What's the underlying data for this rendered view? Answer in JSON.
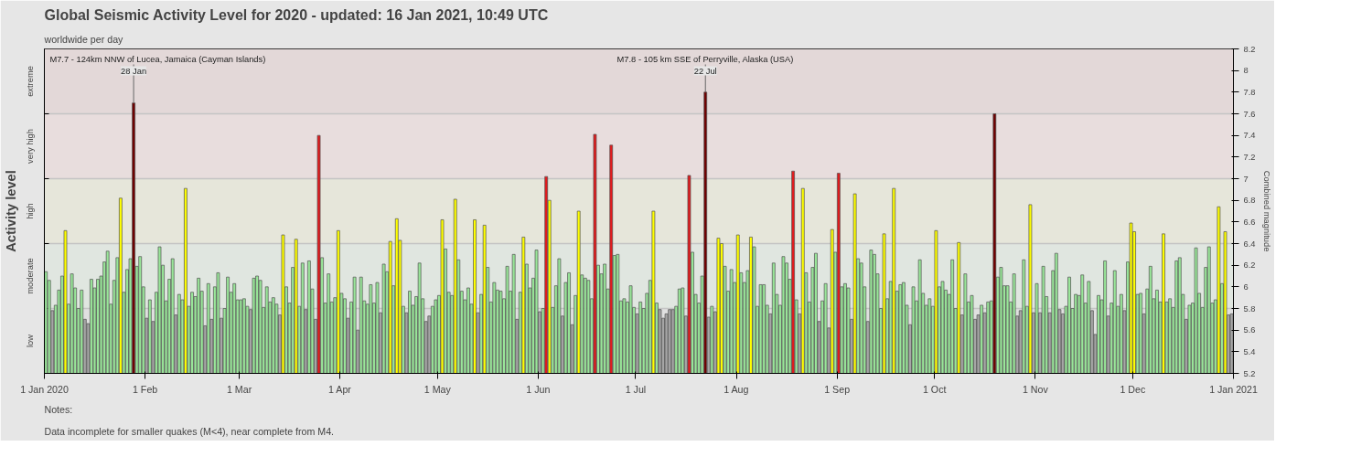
{
  "chart_data": {
    "type": "bar",
    "title": "Global Seismic Activity Level for 2020 - updated: 16 Jan 2021, 10:49 UTC",
    "subtitle": "worldwide per day",
    "ylabel": "Combined magnitude",
    "legend_title": "Activity level",
    "annotations": [
      {
        "text": "M7.7 - 124km NNW of Lucea, Jamaica (Cayman Islands)",
        "x": "2020-01-28",
        "y": 7.7
      },
      {
        "text": "28 Jan",
        "x": "2020-01-28",
        "y": 7.7
      },
      {
        "text": "M7.8 - 105 km SSE of Perryville, Alaska (USA)",
        "x": "2020-07-22",
        "y": 7.8
      },
      {
        "text": "22 Jul",
        "x": "2020-07-22",
        "y": 7.8
      },
      "Notes:",
      "Data incomplete for smaller quakes (M<4), near complete from M4."
    ],
    "xlim": [
      "2020-01-01",
      "2021-01-01"
    ],
    "xticks": [
      {
        "value": "2020-01-01",
        "label": "1 Jan 2020"
      },
      {
        "value": "2020-02-01",
        "label": "1 Feb"
      },
      {
        "value": "2020-03-01",
        "label": "1 Mar"
      },
      {
        "value": "2020-04-01",
        "label": "1 Apr"
      },
      {
        "value": "2020-05-01",
        "label": "1 May"
      },
      {
        "value": "2020-06-01",
        "label": "1 Jun"
      },
      {
        "value": "2020-07-01",
        "label": "1 Jul"
      },
      {
        "value": "2020-08-01",
        "label": "1 Aug"
      },
      {
        "value": "2020-09-01",
        "label": "1 Sep"
      },
      {
        "value": "2020-10-01",
        "label": "1 Oct"
      },
      {
        "value": "2020-11-01",
        "label": "1 Nov"
      },
      {
        "value": "2020-12-01",
        "label": "1 Dec"
      },
      {
        "value": "2021-01-01",
        "label": "1 Jan 2021"
      }
    ],
    "ylim": [
      5.2,
      8.2
    ],
    "yticks": [
      5.2,
      5.4,
      5.6,
      5.8,
      6,
      6.2,
      6.4,
      6.6,
      6.8,
      7,
      7.2,
      7.4,
      7.6,
      7.8,
      8,
      8.2
    ],
    "grid": true,
    "bands": [
      {
        "axis": "y",
        "from": 5.2,
        "to": 5.8,
        "label": "low",
        "color": "#e0e0e0"
      },
      {
        "axis": "y",
        "from": 5.8,
        "to": 6.4,
        "label": "moderate",
        "color": "#e0e6e0"
      },
      {
        "axis": "y",
        "from": 6.4,
        "to": 7.0,
        "label": "high",
        "color": "#e6e6da"
      },
      {
        "axis": "y",
        "from": 7.0,
        "to": 7.6,
        "label": "very high",
        "color": "#e8dddd"
      },
      {
        "axis": "y",
        "from": 7.6,
        "to": 8.2,
        "label": "extreme",
        "color": "#e3d8d8"
      }
    ],
    "x": [
      "2020-01-01",
      "2020-01-02",
      "2020-01-03",
      "2020-01-04",
      "2020-01-05",
      "2020-01-06",
      "2020-01-07",
      "2020-01-08",
      "2020-01-09",
      "2020-01-10",
      "2020-01-11",
      "2020-01-12",
      "2020-01-13",
      "2020-01-14",
      "2020-01-15",
      "2020-01-16",
      "2020-01-17",
      "2020-01-18",
      "2020-01-19",
      "2020-01-20",
      "2020-01-21",
      "2020-01-22",
      "2020-01-23",
      "2020-01-24",
      "2020-01-25",
      "2020-01-26",
      "2020-01-27",
      "2020-01-28",
      "2020-01-29",
      "2020-01-30",
      "2020-01-31",
      "2020-02-01",
      "2020-02-02",
      "2020-02-03",
      "2020-02-04",
      "2020-02-05",
      "2020-02-06",
      "2020-02-07",
      "2020-02-08",
      "2020-02-09",
      "2020-02-10",
      "2020-02-11",
      "2020-02-12",
      "2020-02-13",
      "2020-02-14",
      "2020-02-15",
      "2020-02-16",
      "2020-02-17",
      "2020-02-18",
      "2020-02-19",
      "2020-02-20",
      "2020-02-21",
      "2020-02-22",
      "2020-02-23",
      "2020-02-24",
      "2020-02-25",
      "2020-02-26",
      "2020-02-27",
      "2020-02-28",
      "2020-02-29",
      "2020-03-01",
      "2020-03-02",
      "2020-03-03",
      "2020-03-04",
      "2020-03-05",
      "2020-03-06",
      "2020-03-07",
      "2020-03-08",
      "2020-03-09",
      "2020-03-10",
      "2020-03-11",
      "2020-03-12",
      "2020-03-13",
      "2020-03-14",
      "2020-03-15",
      "2020-03-16",
      "2020-03-17",
      "2020-03-18",
      "2020-03-19",
      "2020-03-20",
      "2020-03-21",
      "2020-03-22",
      "2020-03-23",
      "2020-03-24",
      "2020-03-25",
      "2020-03-26",
      "2020-03-27",
      "2020-03-28",
      "2020-03-29",
      "2020-03-30",
      "2020-03-31",
      "2020-04-01",
      "2020-04-02",
      "2020-04-03",
      "2020-04-04",
      "2020-04-05",
      "2020-04-06",
      "2020-04-07",
      "2020-04-08",
      "2020-04-09",
      "2020-04-10",
      "2020-04-11",
      "2020-04-12",
      "2020-04-13",
      "2020-04-14",
      "2020-04-15",
      "2020-04-16",
      "2020-04-17",
      "2020-04-18",
      "2020-04-19",
      "2020-04-20",
      "2020-04-21",
      "2020-04-22",
      "2020-04-23",
      "2020-04-24",
      "2020-04-25",
      "2020-04-26",
      "2020-04-27",
      "2020-04-28",
      "2020-04-29",
      "2020-04-30",
      "2020-05-01",
      "2020-05-02",
      "2020-05-03",
      "2020-05-04",
      "2020-05-05",
      "2020-05-06",
      "2020-05-07",
      "2020-05-08",
      "2020-05-09",
      "2020-05-10",
      "2020-05-11",
      "2020-05-12",
      "2020-05-13",
      "2020-05-14",
      "2020-05-15",
      "2020-05-16",
      "2020-05-17",
      "2020-05-18",
      "2020-05-19",
      "2020-05-20",
      "2020-05-21",
      "2020-05-22",
      "2020-05-23",
      "2020-05-24",
      "2020-05-25",
      "2020-05-26",
      "2020-05-27",
      "2020-05-28",
      "2020-05-29",
      "2020-05-30",
      "2020-05-31",
      "2020-06-01",
      "2020-06-02",
      "2020-06-03",
      "2020-06-04",
      "2020-06-05",
      "2020-06-06",
      "2020-06-07",
      "2020-06-08",
      "2020-06-09",
      "2020-06-10",
      "2020-06-11",
      "2020-06-12",
      "2020-06-13",
      "2020-06-14",
      "2020-06-15",
      "2020-06-16",
      "2020-06-17",
      "2020-06-18",
      "2020-06-19",
      "2020-06-20",
      "2020-06-21",
      "2020-06-22",
      "2020-06-23",
      "2020-06-24",
      "2020-06-25",
      "2020-06-26",
      "2020-06-27",
      "2020-06-28",
      "2020-06-29",
      "2020-06-30",
      "2020-07-01",
      "2020-07-02",
      "2020-07-03",
      "2020-07-04",
      "2020-07-05",
      "2020-07-06",
      "2020-07-07",
      "2020-07-08",
      "2020-07-09",
      "2020-07-10",
      "2020-07-11",
      "2020-07-12",
      "2020-07-13",
      "2020-07-14",
      "2020-07-15",
      "2020-07-16",
      "2020-07-17",
      "2020-07-18",
      "2020-07-19",
      "2020-07-20",
      "2020-07-21",
      "2020-07-22",
      "2020-07-23",
      "2020-07-24",
      "2020-07-25",
      "2020-07-26",
      "2020-07-27",
      "2020-07-28",
      "2020-07-29",
      "2020-07-30",
      "2020-07-31",
      "2020-08-01",
      "2020-08-02",
      "2020-08-03",
      "2020-08-04",
      "2020-08-05",
      "2020-08-06",
      "2020-08-07",
      "2020-08-08",
      "2020-08-09",
      "2020-08-10",
      "2020-08-11",
      "2020-08-12",
      "2020-08-13",
      "2020-08-14",
      "2020-08-15",
      "2020-08-16",
      "2020-08-17",
      "2020-08-18",
      "2020-08-19",
      "2020-08-20",
      "2020-08-21",
      "2020-08-22",
      "2020-08-23",
      "2020-08-24",
      "2020-08-25",
      "2020-08-26",
      "2020-08-27",
      "2020-08-28",
      "2020-08-29",
      "2020-08-30",
      "2020-08-31",
      "2020-09-01",
      "2020-09-02",
      "2020-09-03",
      "2020-09-04",
      "2020-09-05",
      "2020-09-06",
      "2020-09-07",
      "2020-09-08",
      "2020-09-09",
      "2020-09-10",
      "2020-09-11",
      "2020-09-12",
      "2020-09-13",
      "2020-09-14",
      "2020-09-15",
      "2020-09-16",
      "2020-09-17",
      "2020-09-18",
      "2020-09-19",
      "2020-09-20",
      "2020-09-21",
      "2020-09-22",
      "2020-09-23",
      "2020-09-24",
      "2020-09-25",
      "2020-09-26",
      "2020-09-27",
      "2020-09-28",
      "2020-09-29",
      "2020-09-30",
      "2020-10-01",
      "2020-10-02",
      "2020-10-03",
      "2020-10-04",
      "2020-10-05",
      "2020-10-06",
      "2020-10-07",
      "2020-10-08",
      "2020-10-09",
      "2020-10-10",
      "2020-10-11",
      "2020-10-12",
      "2020-10-13",
      "2020-10-14",
      "2020-10-15",
      "2020-10-16",
      "2020-10-17",
      "2020-10-18",
      "2020-10-19",
      "2020-10-20",
      "2020-10-21",
      "2020-10-22",
      "2020-10-23",
      "2020-10-24",
      "2020-10-25",
      "2020-10-26",
      "2020-10-27",
      "2020-10-28",
      "2020-10-29",
      "2020-10-30",
      "2020-10-31",
      "2020-11-01",
      "2020-11-02",
      "2020-11-03",
      "2020-11-04",
      "2020-11-05",
      "2020-11-06",
      "2020-11-07",
      "2020-11-08",
      "2020-11-09",
      "2020-11-10",
      "2020-11-11",
      "2020-11-12",
      "2020-11-13",
      "2020-11-14",
      "2020-11-15",
      "2020-11-16",
      "2020-11-17",
      "2020-11-18",
      "2020-11-19",
      "2020-11-20",
      "2020-11-21",
      "2020-11-22",
      "2020-11-23",
      "2020-11-24",
      "2020-11-25",
      "2020-11-26",
      "2020-11-27",
      "2020-11-28",
      "2020-11-29",
      "2020-11-30",
      "2020-12-01",
      "2020-12-02",
      "2020-12-03",
      "2020-12-04",
      "2020-12-05",
      "2020-12-06",
      "2020-12-07",
      "2020-12-08",
      "2020-12-09",
      "2020-12-10",
      "2020-12-11",
      "2020-12-12",
      "2020-12-13",
      "2020-12-14",
      "2020-12-15",
      "2020-12-16",
      "2020-12-17",
      "2020-12-18",
      "2020-12-19",
      "2020-12-20",
      "2020-12-21",
      "2020-12-22",
      "2020-12-23",
      "2020-12-24",
      "2020-12-25",
      "2020-12-26",
      "2020-12-27",
      "2020-12-28",
      "2020-12-29",
      "2020-12-30",
      "2020-12-31"
    ],
    "values": [
      6.14,
      6.06,
      5.78,
      5.83,
      5.97,
      6.1,
      6.52,
      5.84,
      6.12,
      5.99,
      5.8,
      5.97,
      5.7,
      5.66,
      6.07,
      5.99,
      6.07,
      6.1,
      6.23,
      6.33,
      5.84,
      6.06,
      6.27,
      6.82,
      5.95,
      6.16,
      6.26,
      7.7,
      6.19,
      6.28,
      6.0,
      5.71,
      5.88,
      5.68,
      5.95,
      6.37,
      6.2,
      5.87,
      6.07,
      6.26,
      5.74,
      5.93,
      5.88,
      6.91,
      5.82,
      5.95,
      5.91,
      6.08,
      5.96,
      5.64,
      6.03,
      5.7,
      6.0,
      6.13,
      5.71,
      5.8,
      6.09,
      5.95,
      6.03,
      5.88,
      5.88,
      5.89,
      5.82,
      5.79,
      6.08,
      6.1,
      6.06,
      5.81,
      6.0,
      5.86,
      5.9,
      5.84,
      5.74,
      6.48,
      6.0,
      5.85,
      6.18,
      6.44,
      5.82,
      6.22,
      5.79,
      6.24,
      5.98,
      5.7,
      7.4,
      6.27,
      5.85,
      6.12,
      5.86,
      5.9,
      6.52,
      5.94,
      5.89,
      5.71,
      5.86,
      6.09,
      5.6,
      6.09,
      5.87,
      5.84,
      6.02,
      5.85,
      6.04,
      5.76,
      6.21,
      6.14,
      6.42,
      6.01,
      6.63,
      6.43,
      5.82,
      5.76,
      5.96,
      5.83,
      5.91,
      6.22,
      5.89,
      5.68,
      5.73,
      5.82,
      5.88,
      5.92,
      6.62,
      6.35,
      5.95,
      5.92,
      6.81,
      6.25,
      5.96,
      5.88,
      5.99,
      5.84,
      6.62,
      5.76,
      5.93,
      6.57,
      6.18,
      5.86,
      6.04,
      5.97,
      5.96,
      5.89,
      6.19,
      5.96,
      6.3,
      5.7,
      5.95,
      6.46,
      6.21,
      5.99,
      6.08,
      6.34,
      5.77,
      5.8,
      7.02,
      6.8,
      5.81,
      6.01,
      6.26,
      5.73,
      6.04,
      6.13,
      5.65,
      5.92,
      6.7,
      6.11,
      6.08,
      6.06,
      5.89,
      7.41,
      6.2,
      6.12,
      6.21,
      5.98,
      7.31,
      6.29,
      6.3,
      5.87,
      5.89,
      5.86,
      6.01,
      5.81,
      5.75,
      5.86,
      5.8,
      5.94,
      6.06,
      6.7,
      5.85,
      5.79,
      5.71,
      5.75,
      5.79,
      5.79,
      5.82,
      5.98,
      5.99,
      5.73,
      7.03,
      6.32,
      5.93,
      5.85,
      6.1,
      7.8,
      5.72,
      5.82,
      5.77,
      6.45,
      6.4,
      6.19,
      5.96,
      6.16,
      6.04,
      6.48,
      6.13,
      6.04,
      6.15,
      6.46,
      6.37,
      5.82,
      6.02,
      6.02,
      5.83,
      5.75,
      6.22,
      5.93,
      5.83,
      6.28,
      6.22,
      6.07,
      7.07,
      5.88,
      5.75,
      6.91,
      6.13,
      5.86,
      6.18,
      6.31,
      5.68,
      5.87,
      6.03,
      5.62,
      6.53,
      6.32,
      7.05,
      6.0,
      6.03,
      5.99,
      5.7,
      6.86,
      6.26,
      6.22,
      6.0,
      5.68,
      6.34,
      6.3,
      6.12,
      5.8,
      6.49,
      5.89,
      6.05,
      6.91,
      5.96,
      6.02,
      6.04,
      5.83,
      5.65,
      6.0,
      5.87,
      6.25,
      5.94,
      5.83,
      5.89,
      5.82,
      6.52,
      6.0,
      6.05,
      5.97,
      5.93,
      6.25,
      5.8,
      6.41,
      5.74,
      6.12,
      5.86,
      5.92,
      5.7,
      5.74,
      5.83,
      5.76,
      5.86,
      5.87,
      7.6,
      6.09,
      6.18,
      6.01,
      6.01,
      5.86,
      6.12,
      5.73,
      5.78,
      6.25,
      5.82,
      6.76,
      5.76,
      6.03,
      5.76,
      6.19,
      5.91,
      5.76,
      6.15,
      6.31,
      5.79,
      5.75,
      5.82,
      6.09,
      5.8,
      5.93,
      5.92,
      6.11,
      5.85,
      6.05,
      5.78,
      5.56,
      5.92,
      5.88,
      6.24,
      5.73,
      5.85,
      6.15,
      5.82,
      5.93,
      5.78,
      6.23,
      6.59,
      6.51,
      5.93,
      5.94,
      5.75,
      5.98,
      6.19,
      5.89,
      5.97,
      5.86,
      6.49,
      5.86,
      5.89,
      5.81,
      6.24,
      6.27,
      5.93,
      5.7,
      5.83,
      5.85,
      6.36,
      5.94,
      5.81,
      6.18,
      6.37,
      5.85,
      5.88,
      6.74,
      6.03,
      6.51,
      5.74,
      5.75
    ],
    "colors": [
      "#99e699",
      "#99e699",
      "#a6a6a6",
      "#99e699",
      "#99e699",
      "#99e699",
      "#ffff00",
      "#99e699",
      "#99e699",
      "#99e699",
      "#99e699",
      "#99e699",
      "#a6a6a6",
      "#a6a6a6",
      "#99e699",
      "#99e699",
      "#99e699",
      "#99e699",
      "#99e699",
      "#99e699",
      "#99e699",
      "#99e699",
      "#99e699",
      "#ffff00",
      "#99e699",
      "#99e699",
      "#99e699",
      "#700000",
      "#99e699",
      "#99e699",
      "#99e699",
      "#a6a6a6",
      "#99e699",
      "#a6a6a6",
      "#99e699",
      "#99e699",
      "#99e699",
      "#99e699",
      "#99e699",
      "#99e699",
      "#a6a6a6",
      "#99e699",
      "#99e699",
      "#ffff00",
      "#99e699",
      "#99e699",
      "#99e699",
      "#99e699",
      "#99e699",
      "#a6a6a6",
      "#99e699",
      "#a6a6a6",
      "#99e699",
      "#99e699",
      "#a6a6a6",
      "#99e699",
      "#99e699",
      "#99e699",
      "#99e699",
      "#99e699",
      "#99e699",
      "#99e699",
      "#99e699",
      "#a6a6a6",
      "#99e699",
      "#99e699",
      "#99e699",
      "#99e699",
      "#99e699",
      "#99e699",
      "#99e699",
      "#99e699",
      "#a6a6a6",
      "#ffff00",
      "#99e699",
      "#99e699",
      "#99e699",
      "#ffff00",
      "#99e699",
      "#99e699",
      "#a6a6a6",
      "#99e699",
      "#99e699",
      "#a6a6a6",
      "#e31a1c",
      "#99e699",
      "#99e699",
      "#99e699",
      "#99e699",
      "#99e699",
      "#ffff00",
      "#99e699",
      "#99e699",
      "#a6a6a6",
      "#99e699",
      "#99e699",
      "#a6a6a6",
      "#99e699",
      "#99e699",
      "#99e699",
      "#99e699",
      "#99e699",
      "#99e699",
      "#a6a6a6",
      "#99e699",
      "#99e699",
      "#ffff00",
      "#99e699",
      "#ffff00",
      "#ffff00",
      "#99e699",
      "#a6a6a6",
      "#99e699",
      "#99e699",
      "#99e699",
      "#99e699",
      "#99e699",
      "#a6a6a6",
      "#a6a6a6",
      "#99e699",
      "#99e699",
      "#99e699",
      "#ffff00",
      "#99e699",
      "#99e699",
      "#99e699",
      "#ffff00",
      "#99e699",
      "#99e699",
      "#99e699",
      "#99e699",
      "#99e699",
      "#ffff00",
      "#a6a6a6",
      "#99e699",
      "#ffff00",
      "#99e699",
      "#99e699",
      "#99e699",
      "#99e699",
      "#99e699",
      "#99e699",
      "#99e699",
      "#99e699",
      "#99e699",
      "#a6a6a6",
      "#99e699",
      "#ffff00",
      "#99e699",
      "#99e699",
      "#99e699",
      "#99e699",
      "#a6a6a6",
      "#99e699",
      "#e31a1c",
      "#ffff00",
      "#99e699",
      "#99e699",
      "#99e699",
      "#a6a6a6",
      "#99e699",
      "#99e699",
      "#a6a6a6",
      "#99e699",
      "#ffff00",
      "#99e699",
      "#99e699",
      "#99e699",
      "#99e699",
      "#e31a1c",
      "#99e699",
      "#99e699",
      "#99e699",
      "#99e699",
      "#e31a1c",
      "#99e699",
      "#99e699",
      "#99e699",
      "#99e699",
      "#99e699",
      "#99e699",
      "#99e699",
      "#a6a6a6",
      "#99e699",
      "#99e699",
      "#99e699",
      "#99e699",
      "#ffff00",
      "#99e699",
      "#a6a6a6",
      "#a6a6a6",
      "#a6a6a6",
      "#a6a6a6",
      "#a6a6a6",
      "#99e699",
      "#99e699",
      "#99e699",
      "#a6a6a6",
      "#e31a1c",
      "#99e699",
      "#99e699",
      "#99e699",
      "#99e699",
      "#700000",
      "#a6a6a6",
      "#99e699",
      "#a6a6a6",
      "#ffff00",
      "#ffff00",
      "#99e699",
      "#99e699",
      "#99e699",
      "#99e699",
      "#ffff00",
      "#99e699",
      "#99e699",
      "#99e699",
      "#ffff00",
      "#99e699",
      "#99e699",
      "#99e699",
      "#99e699",
      "#99e699",
      "#a6a6a6",
      "#99e699",
      "#99e699",
      "#99e699",
      "#99e699",
      "#99e699",
      "#99e699",
      "#e31a1c",
      "#99e699",
      "#a6a6a6",
      "#ffff00",
      "#99e699",
      "#99e699",
      "#99e699",
      "#99e699",
      "#a6a6a6",
      "#99e699",
      "#99e699",
      "#a6a6a6",
      "#ffff00",
      "#99e699",
      "#e31a1c",
      "#99e699",
      "#99e699",
      "#99e699",
      "#a6a6a6",
      "#ffff00",
      "#99e699",
      "#99e699",
      "#99e699",
      "#a6a6a6",
      "#99e699",
      "#99e699",
      "#99e699",
      "#99e699",
      "#ffff00",
      "#99e699",
      "#99e699",
      "#ffff00",
      "#99e699",
      "#99e699",
      "#99e699",
      "#99e699",
      "#a6a6a6",
      "#99e699",
      "#99e699",
      "#99e699",
      "#99e699",
      "#99e699",
      "#99e699",
      "#99e699",
      "#ffff00",
      "#99e699",
      "#99e699",
      "#99e699",
      "#99e699",
      "#99e699",
      "#99e699",
      "#ffff00",
      "#a6a6a6",
      "#99e699",
      "#99e699",
      "#99e699",
      "#a6a6a6",
      "#a6a6a6",
      "#99e699",
      "#a6a6a6",
      "#99e699",
      "#99e699",
      "#700000",
      "#99e699",
      "#99e699",
      "#99e699",
      "#99e699",
      "#99e699",
      "#99e699",
      "#a6a6a6",
      "#a6a6a6",
      "#99e699",
      "#99e699",
      "#ffff00",
      "#a6a6a6",
      "#99e699",
      "#a6a6a6",
      "#99e699",
      "#99e699",
      "#a6a6a6",
      "#99e699",
      "#99e699",
      "#a6a6a6",
      "#a6a6a6",
      "#99e699",
      "#99e699",
      "#99e699",
      "#99e699",
      "#99e699",
      "#99e699",
      "#99e699",
      "#99e699",
      "#a6a6a6",
      "#a6a6a6",
      "#99e699",
      "#99e699",
      "#99e699",
      "#a6a6a6",
      "#99e699",
      "#99e699",
      "#99e699",
      "#99e699",
      "#a6a6a6",
      "#99e699",
      "#ffff00",
      "#ffff00",
      "#99e699",
      "#99e699",
      "#a6a6a6",
      "#99e699",
      "#99e699",
      "#99e699",
      "#99e699",
      "#99e699",
      "#ffff00",
      "#99e699",
      "#99e699",
      "#99e699",
      "#99e699",
      "#99e699",
      "#99e699",
      "#a6a6a6",
      "#99e699",
      "#99e699",
      "#99e699",
      "#99e699",
      "#99e699",
      "#99e699",
      "#99e699",
      "#99e699",
      "#99e699",
      "#ffff00",
      "#99e699",
      "#ffff00",
      "#a6a6a6",
      "#a6a6a6"
    ]
  }
}
